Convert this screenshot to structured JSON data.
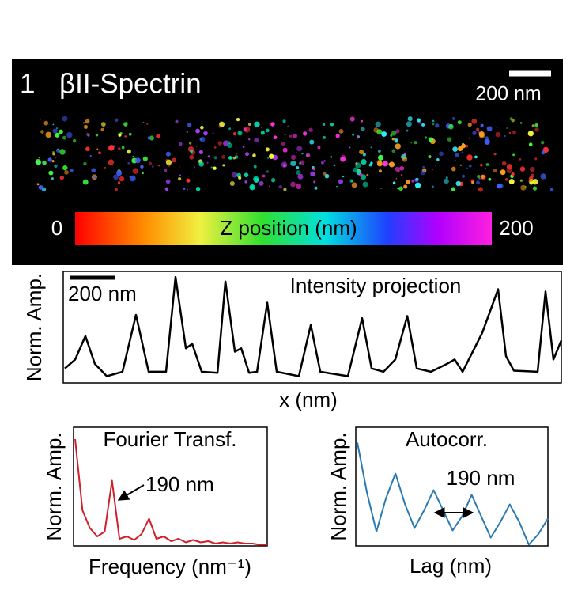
{
  "image": {
    "panel_label": "1",
    "title": "βII-Spectrin",
    "scale_bar": "200 nm",
    "colorbar": {
      "label": "Z position (nm)",
      "zlim": [
        0,
        200
      ]
    }
  },
  "chart_data": [
    {
      "type": "line",
      "title": "Intensity projection",
      "annotation": "200 nm",
      "xlabel": "x (nm)",
      "ylabel": "Norm. Amp.",
      "color": "#000000",
      "x": [
        0,
        46,
        91,
        133,
        186,
        255,
        315,
        371,
        448,
        490,
        536,
        564,
        606,
        676,
        711,
        753,
        781,
        816,
        851,
        896,
        938,
        1036,
        1089,
        1131,
        1253,
        1316,
        1358,
        1411,
        1463,
        1516,
        1558,
        1621,
        1691,
        1726,
        1761,
        1848,
        1918,
        1953,
        1988,
        2093,
        2128,
        2163,
        2198
      ],
      "values": [
        0.13,
        0.21,
        0.42,
        0.17,
        0.06,
        0.1,
        0.61,
        0.1,
        0.1,
        0.95,
        0.31,
        0.35,
        0.1,
        0.09,
        0.91,
        0.28,
        0.31,
        0.09,
        0.1,
        0.72,
        0.1,
        0.06,
        0.52,
        0.1,
        0.06,
        0.58,
        0.13,
        0.1,
        0.21,
        0.6,
        0.13,
        0.1,
        0.17,
        0.21,
        0.1,
        0.45,
        0.84,
        0.24,
        0.11,
        0.1,
        0.82,
        0.21,
        0.38
      ],
      "xlim": [
        0,
        2198
      ],
      "ylim": [
        0,
        1
      ]
    },
    {
      "type": "line",
      "title": "Fourier Transf.",
      "annotation": "190 nm",
      "xlabel": "Frequency (nm⁻¹)",
      "ylabel": "Norm. Amp.",
      "color": "#d0202a",
      "values": [
        0.9,
        0.3,
        0.15,
        0.08,
        0.12,
        0.55,
        0.06,
        0.08,
        0.05,
        0.1,
        0.23,
        0.06,
        0.08,
        0.04,
        0.06,
        0.03,
        0.05,
        0.03,
        0.04,
        0.02,
        0.03,
        0.02,
        0.03,
        0.02,
        0.02,
        0.01,
        0.01
      ],
      "ylim": [
        0,
        1
      ]
    },
    {
      "type": "line",
      "title": "Autocorr.",
      "annotation": "190 nm",
      "xlabel": "Lag (nm)",
      "ylabel": "Norm. Amp.",
      "color": "#2a7ab0",
      "values": [
        0.87,
        0.45,
        0.12,
        0.4,
        0.61,
        0.35,
        0.15,
        0.3,
        0.47,
        0.3,
        0.13,
        0.25,
        0.43,
        0.25,
        0.07,
        0.2,
        0.35,
        0.2,
        0.01,
        0.1,
        0.23
      ],
      "ylim": [
        0,
        1
      ]
    }
  ]
}
